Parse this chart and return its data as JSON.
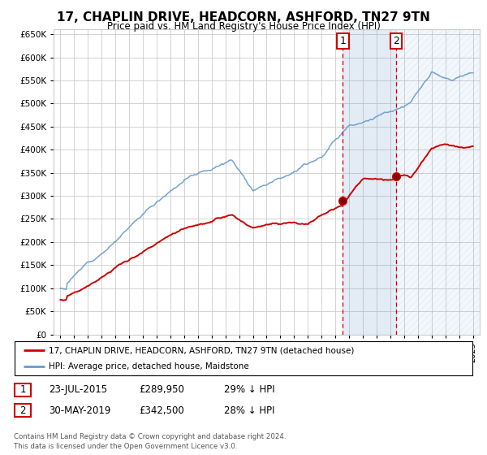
{
  "title": "17, CHAPLIN DRIVE, HEADCORN, ASHFORD, TN27 9TN",
  "subtitle": "Price paid vs. HM Land Registry's House Price Index (HPI)",
  "ylim": [
    0,
    650000
  ],
  "yticks": [
    0,
    50000,
    100000,
    150000,
    200000,
    250000,
    300000,
    350000,
    400000,
    450000,
    500000,
    550000,
    600000,
    650000
  ],
  "sale1_date": "23-JUL-2015",
  "sale1_price": 289950,
  "sale1_label": "1",
  "sale1_x": 2015.55,
  "sale2_date": "30-MAY-2019",
  "sale2_price": 342500,
  "sale2_label": "2",
  "sale2_x": 2019.41,
  "legend_line1": "17, CHAPLIN DRIVE, HEADCORN, ASHFORD, TN27 9TN (detached house)",
  "legend_line2": "HPI: Average price, detached house, Maidstone",
  "footer": "Contains HM Land Registry data © Crown copyright and database right 2024.\nThis data is licensed under the Open Government Licence v3.0.",
  "red_color": "#cc0000",
  "blue_color": "#6699cc",
  "grid_color": "#cccccc",
  "bg_color": "#ffffff",
  "xmin": 1994.5,
  "xmax": 2025.5
}
